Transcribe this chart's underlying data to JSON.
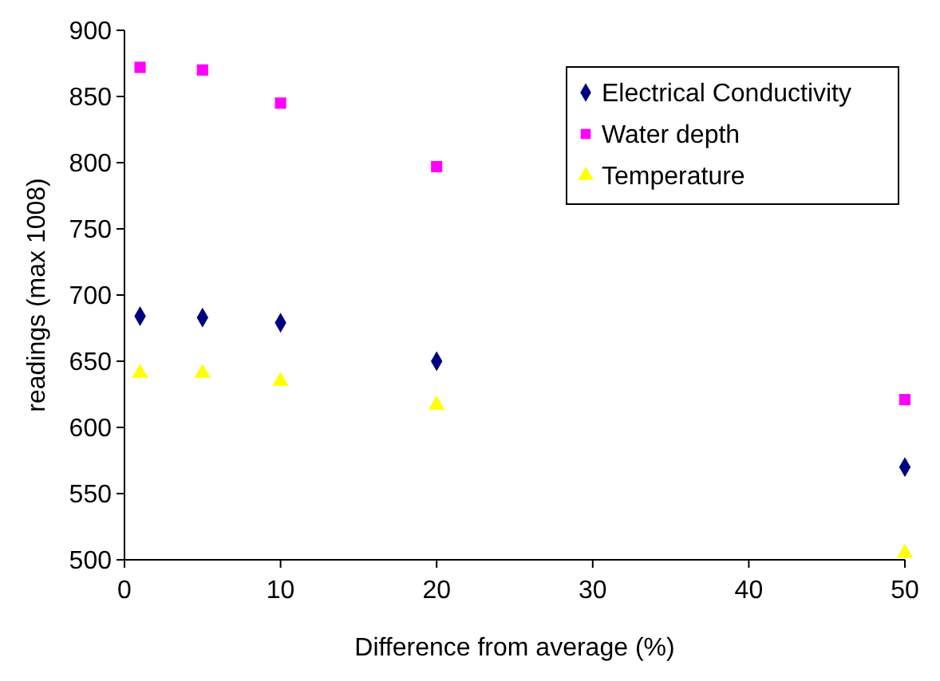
{
  "chart_data": {
    "type": "scatter",
    "xlabel": "Difference from average (%)",
    "ylabel": "readings (max 1008)",
    "x": [
      1,
      5,
      10,
      20,
      50
    ],
    "series": [
      {
        "name": "Electrical Conductivity",
        "color": "#000080",
        "marker": "diamond",
        "values": [
          684,
          683,
          679,
          650,
          570
        ]
      },
      {
        "name": "Water depth",
        "color": "#ff00ff",
        "marker": "square",
        "values": [
          872,
          870,
          845,
          797,
          621
        ]
      },
      {
        "name": "Temperature",
        "color": "#ffff00",
        "marker": "triangle",
        "values": [
          641,
          641,
          635,
          617,
          505
        ]
      }
    ],
    "xlim": [
      0,
      50
    ],
    "xticks": [
      0,
      10,
      20,
      30,
      40,
      50
    ],
    "ylim": [
      500,
      900
    ],
    "yticks": [
      500,
      550,
      600,
      650,
      700,
      750,
      800,
      850,
      900
    ],
    "grid": false,
    "legend": "top right"
  }
}
